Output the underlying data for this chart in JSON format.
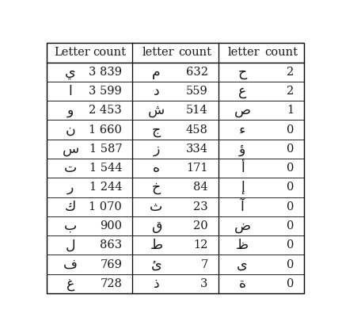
{
  "col1_header": [
    "Letter",
    "count"
  ],
  "col2_header": [
    "letter",
    "count"
  ],
  "col3_header": [
    "letter",
    "count"
  ],
  "col1_data": [
    [
      "ي",
      "3 839"
    ],
    [
      "ا",
      "3 599"
    ],
    [
      "و",
      "2 453"
    ],
    [
      "ن",
      "1 660"
    ],
    [
      "س",
      "1 587"
    ],
    [
      "ت",
      "1 544"
    ],
    [
      "ر",
      "1 244"
    ],
    [
      "ك",
      "1 070"
    ],
    [
      "ب",
      "900"
    ],
    [
      "ل",
      "863"
    ],
    [
      "ف",
      "769"
    ],
    [
      "غ",
      "728"
    ]
  ],
  "col2_data": [
    [
      "م",
      "632"
    ],
    [
      "د",
      "559"
    ],
    [
      "ش",
      "514"
    ],
    [
      "ج",
      "458"
    ],
    [
      "ز",
      "334"
    ],
    [
      "ه",
      "171"
    ],
    [
      "خ",
      "84"
    ],
    [
      "ث",
      "23"
    ],
    [
      "ق",
      "20"
    ],
    [
      "ط",
      "12"
    ],
    [
      "ئ",
      "7"
    ],
    [
      "ذ",
      "3"
    ]
  ],
  "col3_data": [
    [
      "ح",
      "2"
    ],
    [
      "ع",
      "2"
    ],
    [
      "ص",
      "1"
    ],
    [
      "ء",
      "0"
    ],
    [
      "ؤ",
      "0"
    ],
    [
      "أ",
      "0"
    ],
    [
      "إ",
      "0"
    ],
    [
      "آ",
      "0"
    ],
    [
      "ض",
      "0"
    ],
    [
      "ظ",
      "0"
    ],
    [
      "ى",
      "0"
    ],
    [
      "ة",
      "0"
    ]
  ],
  "bg_color": "#ffffff",
  "text_color": "#1a1a1a",
  "header_fontsize": 10.5,
  "count_fontsize": 10.5,
  "arabic_fontsize": 12.5
}
